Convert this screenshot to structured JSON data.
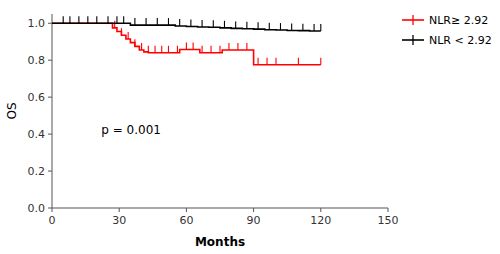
{
  "chart_data": {
    "type": "step",
    "xlabel": "Months",
    "ylabel": "OS",
    "xlim": [
      0,
      150
    ],
    "ylim": [
      0.0,
      1.05
    ],
    "xticks": [
      0,
      30,
      60,
      90,
      120,
      150
    ],
    "yticks": [
      {
        "value": 0.0,
        "label": "0.0"
      },
      0.2,
      0.4,
      0.6,
      0.8,
      {
        "value": 1.0,
        "label": "1.0"
      }
    ],
    "legend": "right",
    "annotations": [
      {
        "text": "p = 0.001",
        "x": 22,
        "y": 0.4
      }
    ],
    "series": [
      {
        "name": "NLR≥ 2.92",
        "color": "#FF0000",
        "x": [
          0,
          25,
          27,
          29,
          31,
          33,
          35,
          37,
          39,
          41,
          43,
          55,
          57,
          59,
          60,
          62,
          64,
          66,
          68,
          70,
          72,
          74,
          76,
          78,
          80,
          82,
          84,
          88,
          90,
          92,
          94,
          96,
          98,
          100,
          102,
          110,
          120
        ],
        "values": [
          1.0,
          1.0,
          0.975,
          0.955,
          0.935,
          0.915,
          0.895,
          0.875,
          0.855,
          0.845,
          0.84,
          0.84,
          0.858,
          0.858,
          0.858,
          0.858,
          0.858,
          0.84,
          0.84,
          0.84,
          0.84,
          0.84,
          0.855,
          0.855,
          0.855,
          0.855,
          0.855,
          0.855,
          0.775,
          0.775,
          0.775,
          0.775,
          0.775,
          0.775,
          0.775,
          0.775,
          0.775
        ],
        "censor_x": [
          28,
          31,
          34,
          37,
          40,
          43,
          46,
          49,
          52,
          56,
          60,
          63,
          67,
          71,
          75,
          79,
          83,
          87,
          92,
          96,
          100,
          110,
          120
        ],
        "censor_values": [
          0.975,
          0.935,
          0.915,
          0.875,
          0.855,
          0.84,
          0.84,
          0.84,
          0.84,
          0.84,
          0.858,
          0.858,
          0.84,
          0.84,
          0.84,
          0.855,
          0.855,
          0.855,
          0.775,
          0.775,
          0.775,
          0.775,
          0.775
        ]
      },
      {
        "name": "NLR < 2.92",
        "color": "#000000",
        "x": [
          0,
          5,
          10,
          15,
          20,
          25,
          30,
          35,
          50,
          55,
          60,
          65,
          70,
          75,
          80,
          85,
          90,
          95,
          100,
          105,
          110,
          115,
          120
        ],
        "values": [
          1.0,
          1.0,
          1.0,
          1.0,
          1.0,
          1.0,
          1.0,
          0.99,
          0.99,
          0.985,
          0.982,
          0.98,
          0.978,
          0.975,
          0.972,
          0.97,
          0.968,
          0.965,
          0.963,
          0.961,
          0.96,
          0.958,
          0.958
        ],
        "censor_x": [
          5,
          8,
          12,
          16,
          20,
          25,
          29,
          32,
          37,
          42,
          47,
          52,
          57,
          62,
          67,
          72,
          77,
          82,
          87,
          92,
          97,
          102,
          107,
          112,
          117,
          120
        ],
        "censor_values": [
          1.0,
          1.0,
          1.0,
          1.0,
          1.0,
          1.0,
          1.0,
          1.0,
          0.99,
          0.99,
          0.99,
          0.99,
          0.985,
          0.982,
          0.98,
          0.978,
          0.975,
          0.972,
          0.97,
          0.968,
          0.965,
          0.963,
          0.961,
          0.96,
          0.958,
          0.958
        ]
      }
    ]
  }
}
